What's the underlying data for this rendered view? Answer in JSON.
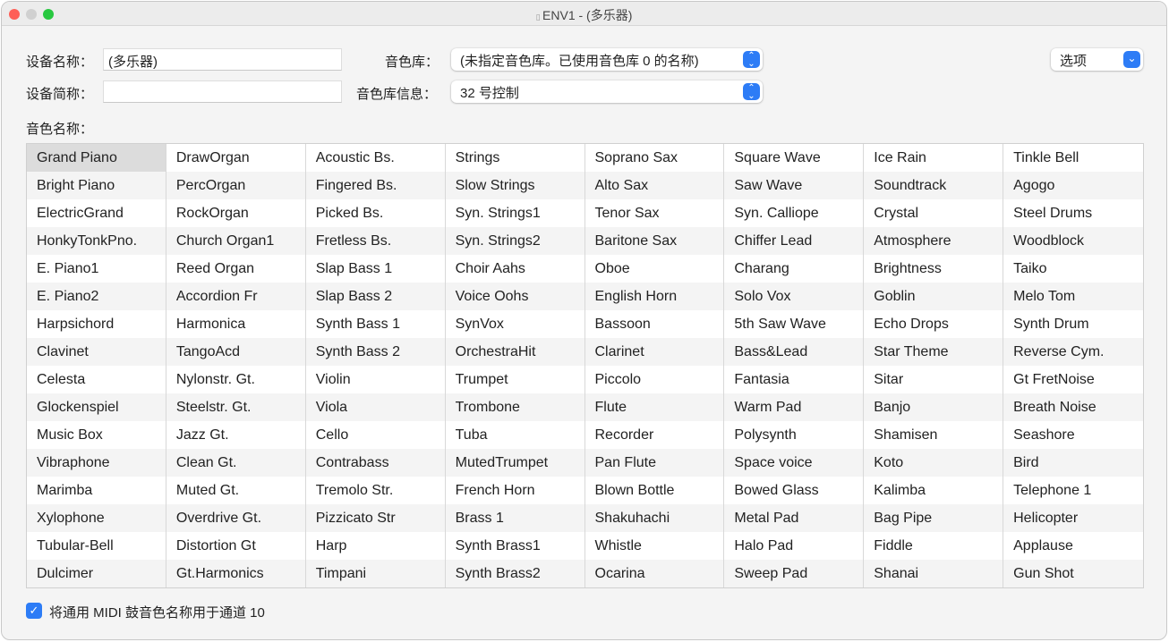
{
  "window": {
    "title": "ENV1 - (多乐器)"
  },
  "form": {
    "device_name_label": "设备名称：",
    "device_name_value": "(多乐器)",
    "short_name_label": "设备简称：",
    "short_name_value": "",
    "bank_label": "音色库：",
    "bank_value": "(未指定音色库。已使用音色库 0 的名称)",
    "bank_info_label": "音色库信息：",
    "bank_info_value": "32 号控制",
    "options_label": "选项",
    "patch_names_label": "音色名称："
  },
  "selected_patch": "Grand Piano",
  "patches": [
    [
      "Grand Piano",
      "Bright Piano",
      "ElectricGrand",
      "HonkyTonkPno.",
      "E. Piano1",
      "E. Piano2",
      "Harpsichord",
      "Clavinet",
      "Celesta",
      "Glockenspiel",
      "Music Box",
      "Vibraphone",
      "Marimba",
      "Xylophone",
      "Tubular-Bell",
      "Dulcimer"
    ],
    [
      "DrawOrgan",
      "PercOrgan",
      "RockOrgan",
      "Church Organ1",
      "Reed Organ",
      "Accordion Fr",
      "Harmonica",
      "TangoAcd",
      "Nylonstr. Gt.",
      "Steelstr. Gt.",
      "Jazz Gt.",
      "Clean Gt.",
      "Muted Gt.",
      "Overdrive Gt.",
      "Distortion Gt",
      "Gt.Harmonics"
    ],
    [
      "Acoustic Bs.",
      "Fingered Bs.",
      "Picked Bs.",
      "Fretless Bs.",
      "Slap Bass 1",
      "Slap Bass 2",
      "Synth Bass 1",
      "Synth Bass 2",
      "Violin",
      "Viola",
      "Cello",
      "Contrabass",
      "Tremolo Str.",
      "Pizzicato Str",
      "Harp",
      "Timpani"
    ],
    [
      "Strings",
      "Slow Strings",
      "Syn. Strings1",
      "Syn. Strings2",
      "Choir Aahs",
      "Voice Oohs",
      "SynVox",
      "OrchestraHit",
      "Trumpet",
      "Trombone",
      "Tuba",
      "MutedTrumpet",
      "French Horn",
      "Brass 1",
      "Synth Brass1",
      "Synth Brass2"
    ],
    [
      "Soprano Sax",
      "Alto Sax",
      "Tenor Sax",
      "Baritone Sax",
      "Oboe",
      "English Horn",
      "Bassoon",
      "Clarinet",
      "Piccolo",
      "Flute",
      "Recorder",
      "Pan Flute",
      "Blown Bottle",
      "Shakuhachi",
      "Whistle",
      "Ocarina"
    ],
    [
      "Square Wave",
      "Saw Wave",
      "Syn. Calliope",
      "Chiffer Lead",
      "Charang",
      "Solo Vox",
      "5th Saw Wave",
      "Bass&Lead",
      "Fantasia",
      "Warm Pad",
      "Polysynth",
      "Space voice",
      "Bowed Glass",
      "Metal Pad",
      "Halo Pad",
      "Sweep Pad"
    ],
    [
      "Ice Rain",
      "Soundtrack",
      "Crystal",
      "Atmosphere",
      "Brightness",
      "Goblin",
      "Echo Drops",
      "Star Theme",
      "Sitar",
      "Banjo",
      "Shamisen",
      "Koto",
      "Kalimba",
      "Bag Pipe",
      "Fiddle",
      "Shanai"
    ],
    [
      "Tinkle Bell",
      "Agogo",
      "Steel Drums",
      "Woodblock",
      "Taiko",
      "Melo Tom",
      "Synth Drum",
      "Reverse Cym.",
      "Gt FretNoise",
      "Breath Noise",
      "Seashore",
      "Bird",
      "Telephone 1",
      "Helicopter",
      "Applause",
      "Gun Shot"
    ]
  ],
  "gm_drum_checkbox": {
    "label": "将通用 MIDI 鼓音色名称用于通道 10",
    "checked": true
  },
  "colors": {
    "accent": "#2d7cf6",
    "close": "#fe5f57",
    "minimize": "#d0d0d0",
    "zoom": "#28c840"
  }
}
